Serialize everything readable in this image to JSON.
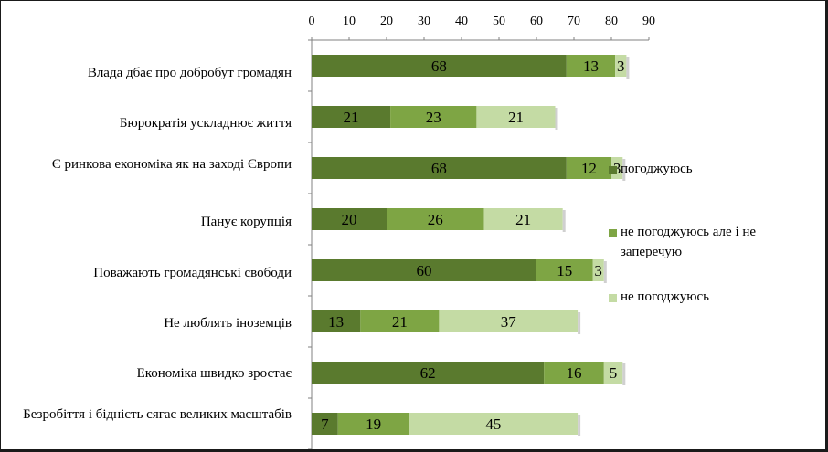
{
  "chart_data": {
    "type": "bar",
    "orientation": "horizontal",
    "stacked": true,
    "xlim": [
      0,
      90
    ],
    "x_ticks": [
      0,
      10,
      20,
      30,
      40,
      50,
      60,
      70,
      80,
      90
    ],
    "x_axis_position": "top",
    "grid": false,
    "legend_position": "right",
    "categories": [
      "Влада дбає про добробут громадян",
      "Бюрократія ускладнює життя",
      "Є ринкова економіка як на заході Європи",
      "Панує корупція",
      "Поважають громадянські свободи",
      "Не люблять іноземців",
      "Економіка швидко зростає",
      "Безробіття і бідність сягає великих масштабів"
    ],
    "series": [
      {
        "name": "погоджуюсь",
        "color": "#5a7a2e",
        "values": [
          68,
          21,
          68,
          20,
          60,
          13,
          62,
          7
        ]
      },
      {
        "name": "не погоджуюсь але і не заперечую",
        "color": "#7ea544",
        "values": [
          13,
          23,
          12,
          26,
          15,
          21,
          16,
          19
        ]
      },
      {
        "name": "не погоджуюсь",
        "color": "#c4dba4",
        "values": [
          3,
          21,
          3,
          21,
          3,
          37,
          5,
          45
        ]
      }
    ]
  }
}
